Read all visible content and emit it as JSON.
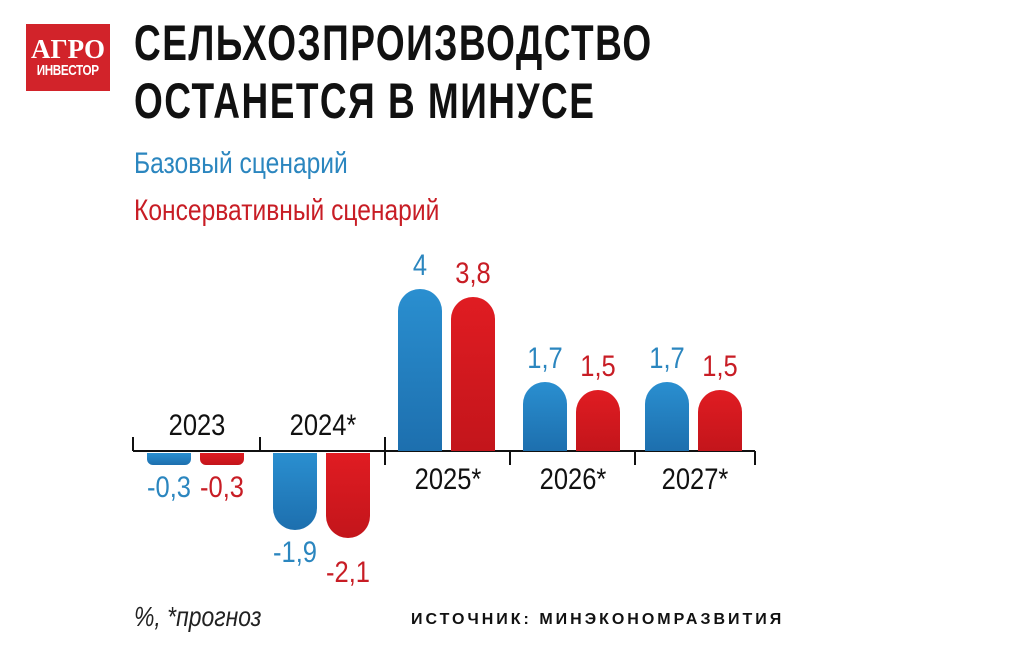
{
  "logo": {
    "line1": "АГРО",
    "line2": "ИНВЕСТОР"
  },
  "header": {
    "title_line1": "СЕЛЬХОЗПРОИЗВОДСТВО",
    "title_line2": "ОСТАНЕТСЯ В МИНУСЕ"
  },
  "legend": {
    "base": "Базовый сценарий",
    "conservative": "Консервативный сценарий"
  },
  "footer": {
    "note": "%, *прогноз",
    "source": "ИСТОЧНИК: МИНЭКОНОМРАЗВИТИЯ"
  },
  "labels": {
    "cat": [
      "2023",
      "2024*",
      "2025*",
      "2026*",
      "2027*"
    ],
    "base": [
      "-0,3",
      "-1,9",
      "4",
      "1,7",
      "1,7"
    ],
    "cons": [
      "-0,3",
      "-2,1",
      "3,8",
      "1,5",
      "1,5"
    ]
  },
  "colors": {
    "base": "#2b86bf",
    "conservative": "#c81d25",
    "logo_bg": "#d2232a"
  },
  "chart_data": {
    "type": "bar",
    "title": "Сельхозпроизводство останется в минусе",
    "categories": [
      "2023",
      "2024*",
      "2025*",
      "2026*",
      "2027*"
    ],
    "series": [
      {
        "name": "Базовый сценарий",
        "color": "#2b86bf",
        "values": [
          -0.3,
          -1.9,
          4.0,
          1.7,
          1.7
        ]
      },
      {
        "name": "Консервативный сценарий",
        "color": "#c81d25",
        "values": [
          -0.3,
          -2.1,
          3.8,
          1.5,
          1.5
        ]
      }
    ],
    "xlabel": "",
    "ylabel": "%",
    "unit_note": "%, *прогноз",
    "source": "Источник: Минэкономразвития",
    "legend_position": "top-left",
    "grid": false,
    "ylim": [
      -2.5,
      4.5
    ]
  }
}
